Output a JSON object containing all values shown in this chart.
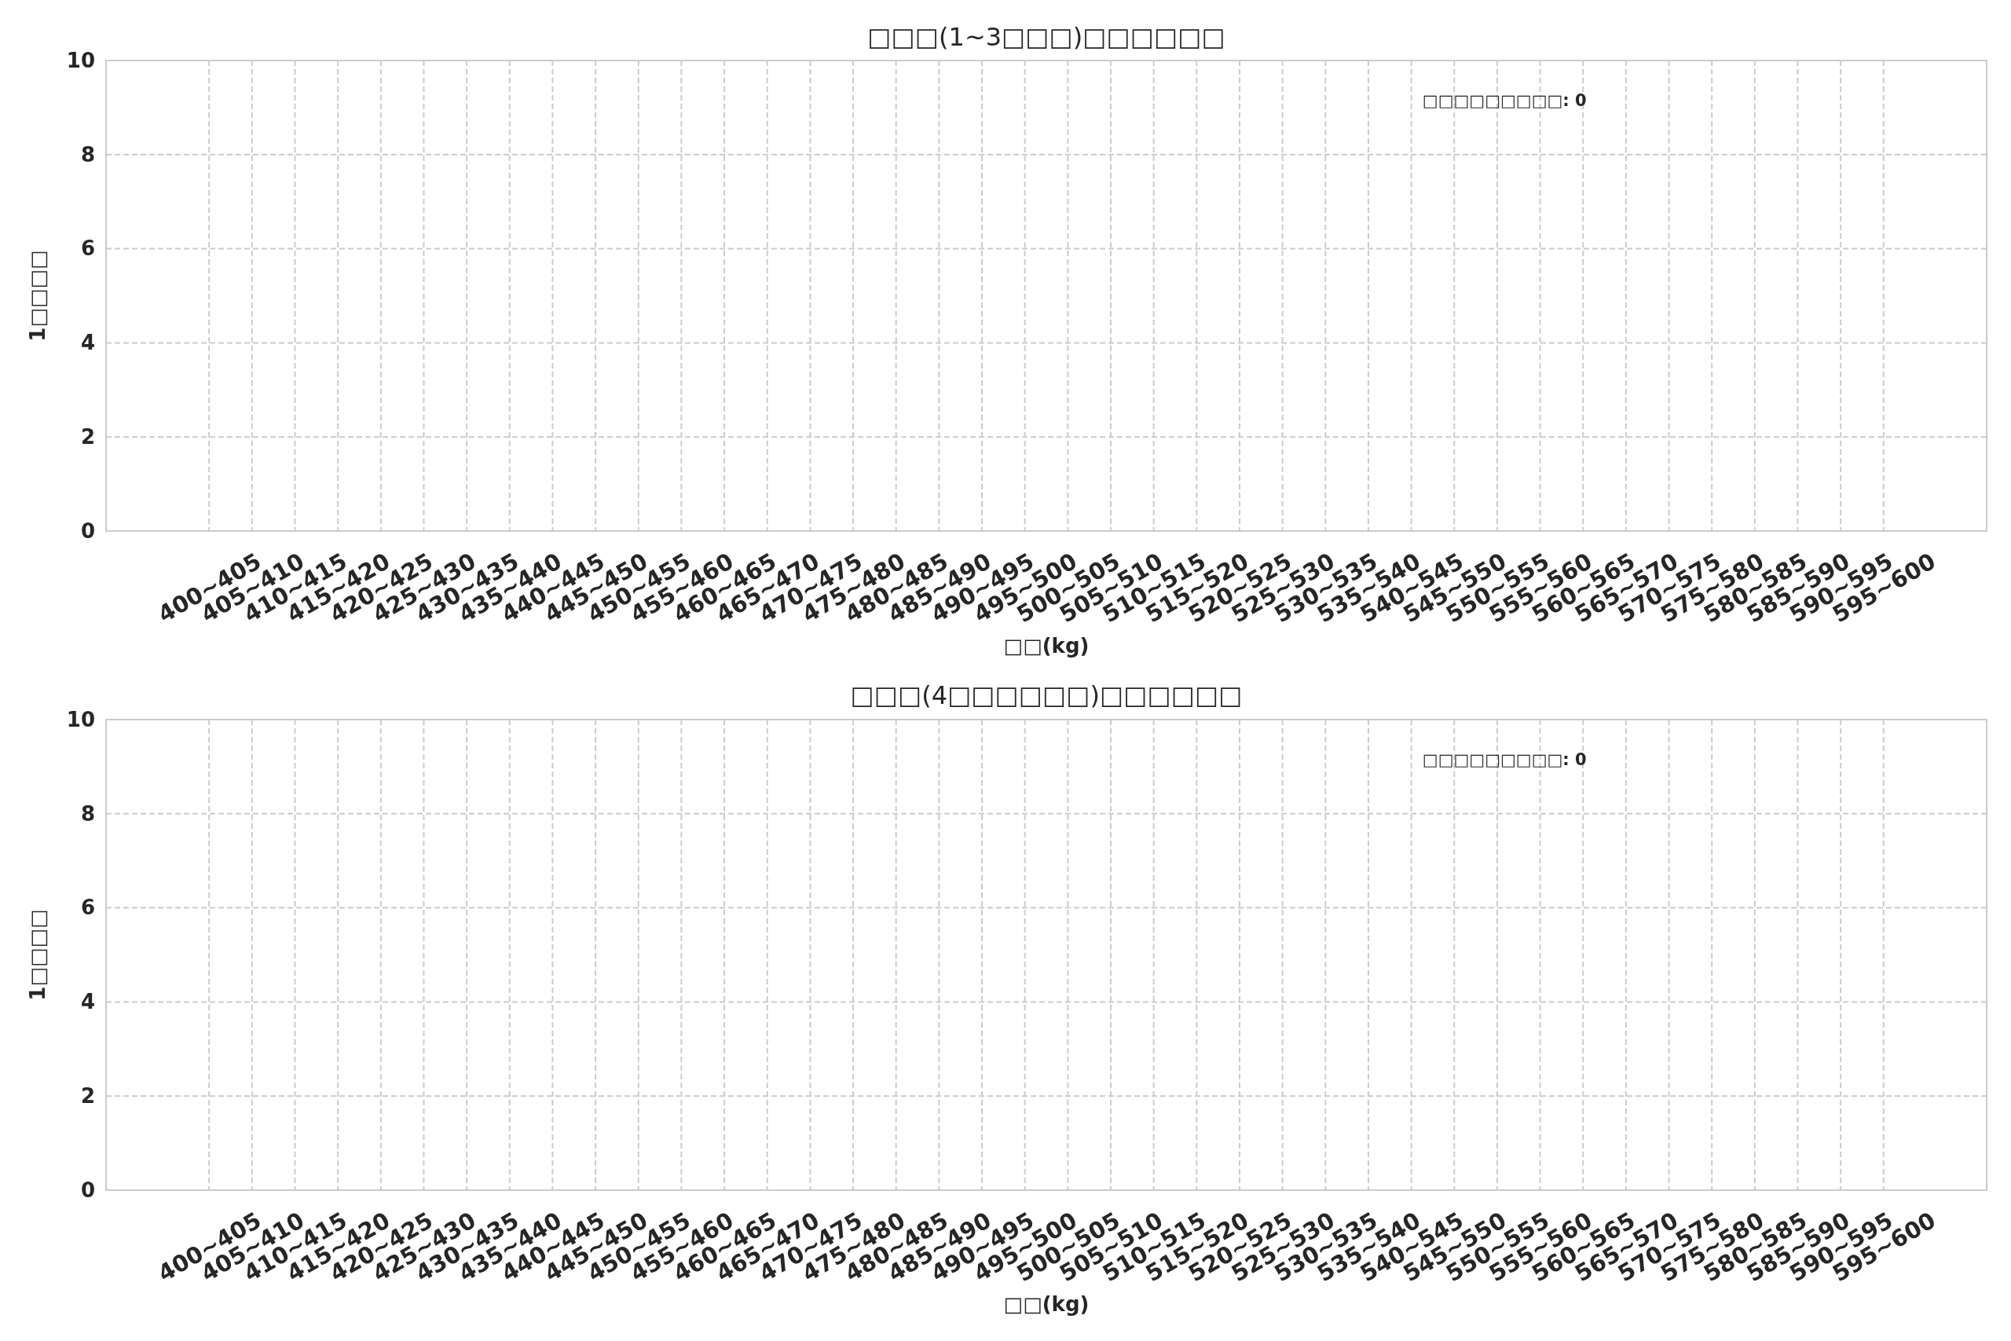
{
  "chart_data": [
    {
      "type": "bar",
      "title": "□□□(1~3□□□)□□□□□□",
      "xlabel": "□□(kg)",
      "ylabel": "1□□□□",
      "categories": [
        "400~405",
        "405~410",
        "410~415",
        "415~420",
        "420~425",
        "425~430",
        "430~435",
        "435~440",
        "440~445",
        "445~450",
        "450~455",
        "455~460",
        "460~465",
        "465~470",
        "470~475",
        "475~480",
        "480~485",
        "485~490",
        "490~495",
        "495~500",
        "500~505",
        "505~510",
        "510~515",
        "515~520",
        "520~525",
        "525~530",
        "530~535",
        "535~540",
        "540~545",
        "545~550",
        "550~555",
        "555~560",
        "560~565",
        "565~570",
        "570~575",
        "575~580",
        "580~585",
        "585~590",
        "590~595",
        "595~600"
      ],
      "values": [
        0,
        0,
        0,
        0,
        0,
        0,
        0,
        0,
        0,
        0,
        0,
        0,
        0,
        0,
        0,
        0,
        0,
        0,
        0,
        0,
        0,
        0,
        0,
        0,
        0,
        0,
        0,
        0,
        0,
        0,
        0,
        0,
        0,
        0,
        0,
        0,
        0,
        0,
        0,
        0
      ],
      "ylim": [
        0,
        10
      ],
      "yticks": [
        0,
        2,
        4,
        6,
        8,
        10
      ],
      "grid": true,
      "annotations": [
        "□□□□□□□□□: 0"
      ]
    },
    {
      "type": "bar",
      "title": "□□□(4□□□□□□)□□□□□□",
      "xlabel": "□□(kg)",
      "ylabel": "1□□□□",
      "categories": [
        "400~405",
        "405~410",
        "410~415",
        "415~420",
        "420~425",
        "425~430",
        "430~435",
        "435~440",
        "440~445",
        "445~450",
        "450~455",
        "455~460",
        "460~465",
        "465~470",
        "470~475",
        "475~480",
        "480~485",
        "485~490",
        "490~495",
        "495~500",
        "500~505",
        "505~510",
        "510~515",
        "515~520",
        "520~525",
        "525~530",
        "530~535",
        "535~540",
        "540~545",
        "545~550",
        "550~555",
        "555~560",
        "560~565",
        "565~570",
        "570~575",
        "575~580",
        "580~585",
        "585~590",
        "590~595",
        "595~600"
      ],
      "values": [
        0,
        0,
        0,
        0,
        0,
        0,
        0,
        0,
        0,
        0,
        0,
        0,
        0,
        0,
        0,
        0,
        0,
        0,
        0,
        0,
        0,
        0,
        0,
        0,
        0,
        0,
        0,
        0,
        0,
        0,
        0,
        0,
        0,
        0,
        0,
        0,
        0,
        0,
        0,
        0
      ],
      "ylim": [
        0,
        10
      ],
      "yticks": [
        0,
        2,
        4,
        6,
        8,
        10
      ],
      "grid": true,
      "annotations": [
        "□□□□□□□□□: 0"
      ]
    }
  ]
}
